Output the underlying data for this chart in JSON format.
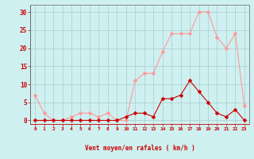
{
  "hours": [
    0,
    1,
    2,
    3,
    4,
    5,
    6,
    7,
    8,
    9,
    10,
    11,
    12,
    13,
    14,
    15,
    16,
    17,
    18,
    19,
    20,
    21,
    22,
    23
  ],
  "wind_avg": [
    0,
    0,
    0,
    0,
    0,
    0,
    0,
    0,
    0,
    0,
    1,
    2,
    2,
    1,
    6,
    6,
    7,
    11,
    8,
    5,
    2,
    1,
    3,
    0
  ],
  "wind_gust": [
    7,
    2,
    0,
    0,
    1,
    2,
    2,
    1,
    2,
    0,
    0,
    11,
    13,
    13,
    19,
    24,
    24,
    24,
    30,
    30,
    23,
    20,
    24,
    4
  ],
  "bg_color": "#cff0f0",
  "grid_color": "#aacccc",
  "line_color_avg": "#cc0000",
  "line_color_gust": "#ff9999",
  "marker_size": 2.5,
  "marker_style": "D",
  "xlabel": "Vent moyen/en rafales ( km/h )",
  "ylabel_ticks": [
    0,
    5,
    10,
    15,
    20,
    25,
    30
  ],
  "xlim": [
    -0.5,
    23.5
  ],
  "ylim": [
    -1,
    32
  ]
}
